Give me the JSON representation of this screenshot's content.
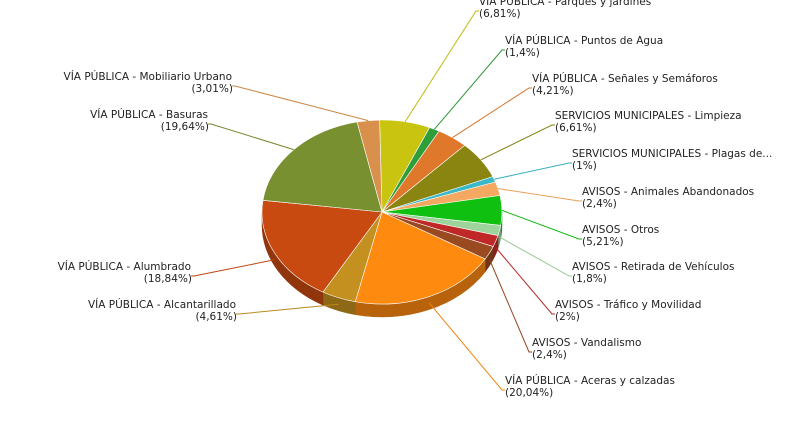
{
  "chart_data": {
    "type": "pie",
    "title": "",
    "slices": [
      {
        "category": "VÍA PÚBLICA - Parques y jardines",
        "value": 6.81,
        "value_label": "(6,81%)",
        "color": "#c8c410"
      },
      {
        "category": "VÍA PÚBLICA - Puntos de Agua",
        "value": 1.4,
        "value_label": "(1,4%)",
        "color": "#2e9e3a"
      },
      {
        "category": "VÍA PÚBLICA - Señales y Semáforos",
        "value": 4.21,
        "value_label": "(4,21%)",
        "color": "#e0782c"
      },
      {
        "category": "SERVICIOS MUNICIPALES - Limpieza",
        "value": 6.61,
        "value_label": "(6,61%)",
        "color": "#8a8410"
      },
      {
        "category": "SERVICIOS MUNICIPALES - Plagas de...",
        "value": 1.0,
        "value_label": "(1%)",
        "color": "#3ab8c8"
      },
      {
        "category": "AVISOS - Animales Abandonados",
        "value": 2.4,
        "value_label": "(2,4%)",
        "color": "#f4a860"
      },
      {
        "category": "AVISOS - Otros",
        "value": 5.21,
        "value_label": "(5,21%)",
        "color": "#10c010"
      },
      {
        "category": "AVISOS - Retirada de Vehículos",
        "value": 1.8,
        "value_label": "(1,8%)",
        "color": "#9cd49c"
      },
      {
        "category": "AVISOS - Tráfico y Movilidad",
        "value": 2.0,
        "value_label": "(2%)",
        "color": "#c02828"
      },
      {
        "category": "AVISOS - Vandalismo",
        "value": 2.4,
        "value_label": "(2,4%)",
        "color": "#9a4a20"
      },
      {
        "category": "VÍA PÚBLICA - Aceras y calzadas",
        "value": 20.04,
        "value_label": "(20,04%)",
        "color": "#ff8a10"
      },
      {
        "category": "VÍA PÚBLICA - Alcantarillado",
        "value": 4.61,
        "value_label": "(4,61%)",
        "color": "#c49020"
      },
      {
        "category": "VÍA PÚBLICA - Alumbrado",
        "value": 18.84,
        "value_label": "(18,84%)",
        "color": "#c84a10"
      },
      {
        "category": "VÍA PÚBLICA - Basuras",
        "value": 19.64,
        "value_label": "(19,64%)",
        "color": "#789030"
      },
      {
        "category": "VÍA PÚBLICA - Mobiliario Urbano",
        "value": 3.01,
        "value_label": "(3,01%)",
        "color": "#d8904c"
      }
    ],
    "legend": "none",
    "style": "3d-pie-with-callouts"
  }
}
